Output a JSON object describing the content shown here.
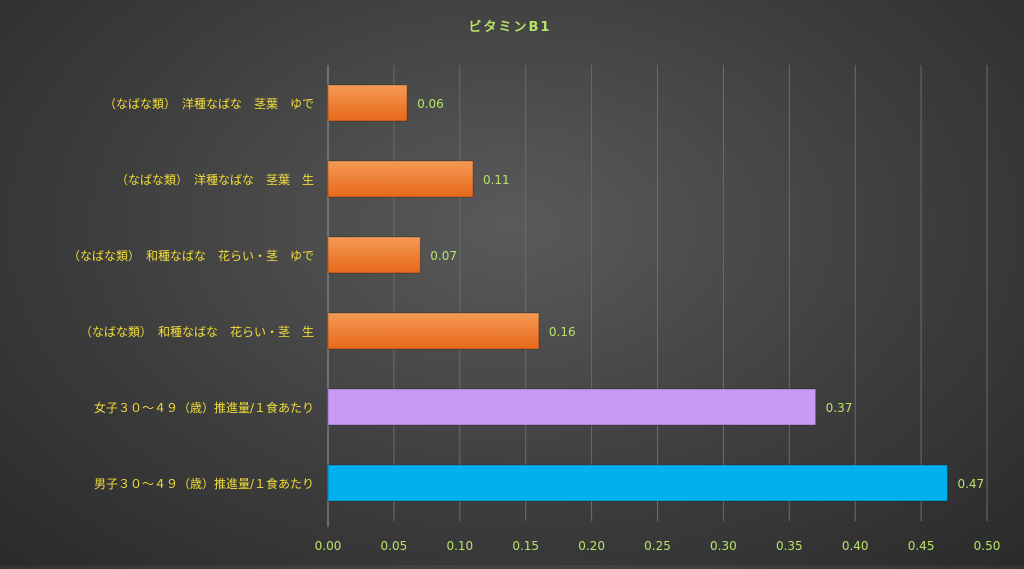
{
  "chart_data": {
    "type": "bar",
    "orientation": "horizontal",
    "title": "ビタミンB1",
    "xlabel": "",
    "ylabel": "",
    "xlim": [
      0,
      0.5
    ],
    "x_ticks": [
      "0.00",
      "0.05",
      "0.10",
      "0.15",
      "0.20",
      "0.25",
      "0.30",
      "0.35",
      "0.40",
      "0.45",
      "0.50"
    ],
    "grid": true,
    "legend": "none",
    "categories": [
      "（なばな類）　洋種なばな　茎葉　ゆで",
      "（なばな類）　洋種なばな　茎葉　生",
      "（なばな類）　和種なばな　花らい・茎　ゆで",
      "（なばな類）　和種なばな　花らい・茎　生",
      "女子３０～４９（歳）推進量/１食あたり",
      "男子３０～４９（歳）推進量/１食あたり"
    ],
    "values": [
      0.06,
      0.11,
      0.07,
      0.16,
      0.37,
      0.47
    ],
    "value_labels": [
      "0.06",
      "0.11",
      "0.07",
      "0.16",
      "0.37",
      "0.47"
    ],
    "bar_colors": [
      "#f07b2a",
      "#f07b2a",
      "#f07b2a",
      "#f07b2a",
      "#c899f5",
      "#00b0ef"
    ]
  }
}
